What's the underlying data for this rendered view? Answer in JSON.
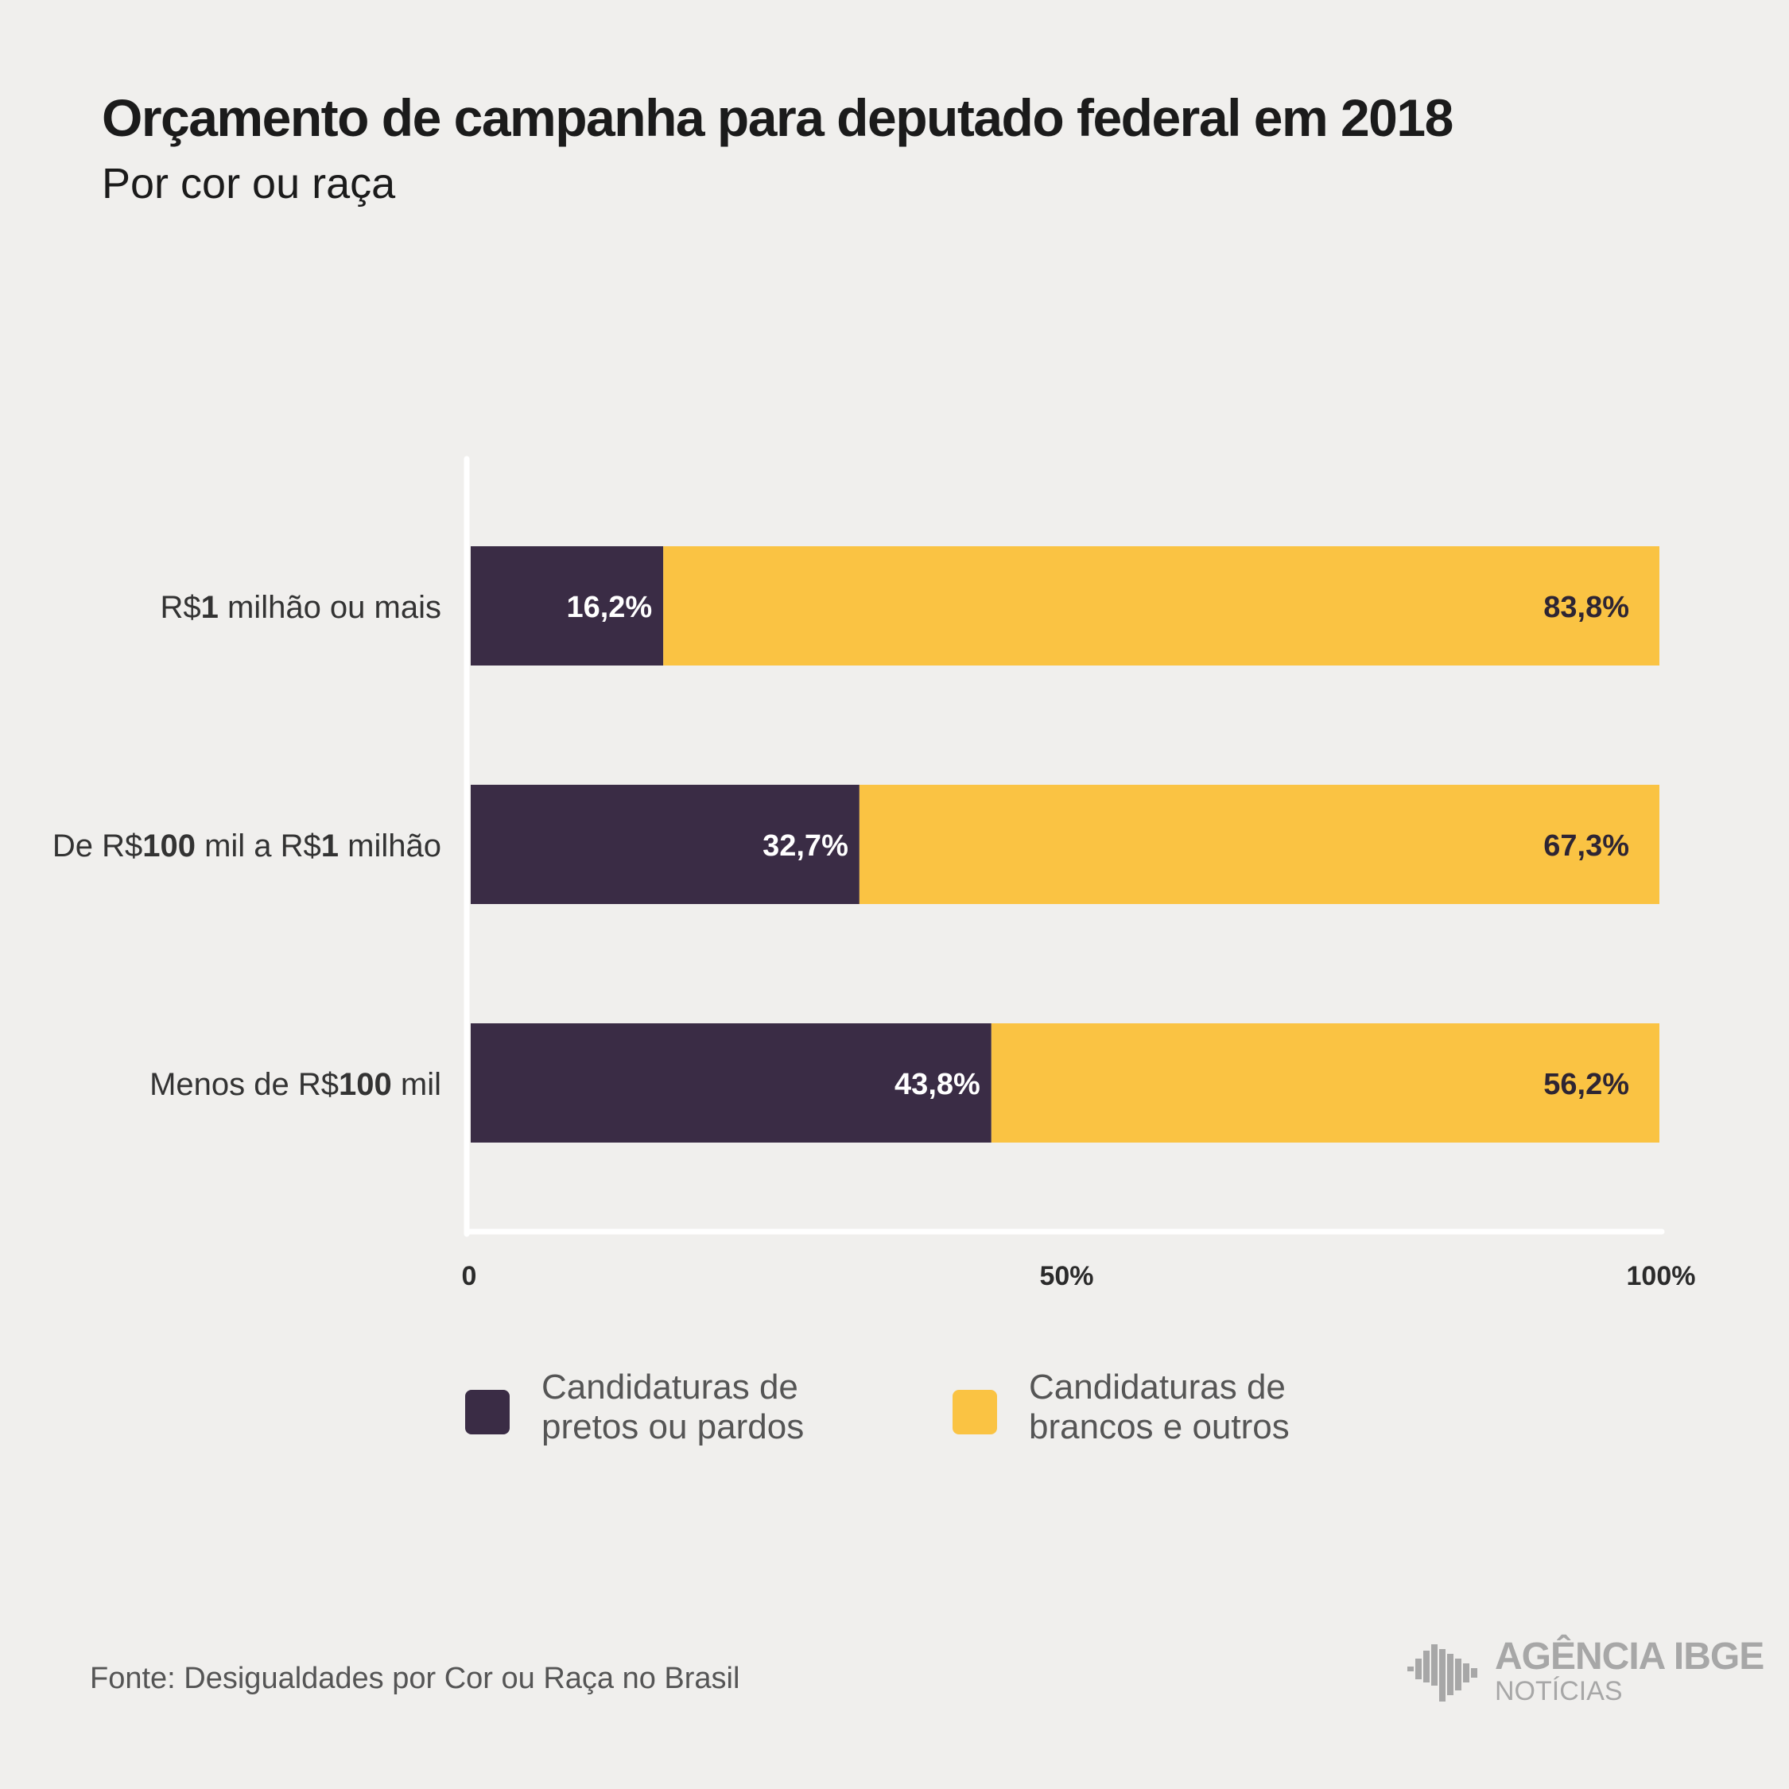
{
  "title": "Orçamento de campanha para deputado federal em 2018",
  "subtitle": "Por cor ou raça",
  "colors": {
    "background": "#f0efed",
    "dark": "#3a2c45",
    "yellow": "#fac343",
    "axis": "#ffffff"
  },
  "chart_data": {
    "type": "bar",
    "orientation": "horizontal",
    "stacked": true,
    "categories": [
      [
        {
          "t": "R$"
        },
        {
          "t": "1",
          "b": true
        },
        {
          "t": " milhão ou mais"
        }
      ],
      [
        {
          "t": "De R$"
        },
        {
          "t": "100",
          "b": true
        },
        {
          "t": " mil a R$"
        },
        {
          "t": "1",
          "b": true
        },
        {
          "t": " milhão"
        }
      ],
      [
        {
          "t": "Menos de R$"
        },
        {
          "t": "100",
          "b": true
        },
        {
          "t": " mil"
        }
      ]
    ],
    "series": [
      {
        "name": "Candidaturas de pretos ou pardos",
        "values": [
          16.2,
          32.7,
          43.8
        ],
        "labels": [
          "16,2%",
          "32,7%",
          "43,8%"
        ],
        "color": "#3a2c45"
      },
      {
        "name": "Candidaturas de brancos e outros",
        "values": [
          83.8,
          67.3,
          56.2
        ],
        "labels": [
          "83,8%",
          "67,3%",
          "56,2%"
        ],
        "color": "#fac343"
      }
    ],
    "xlim": [
      0,
      100
    ],
    "xticks": [
      0,
      50,
      100
    ],
    "xtick_labels": [
      "0",
      "50%",
      "100%"
    ],
    "grid": false,
    "legend_position": "bottom"
  },
  "legend": {
    "items": [
      {
        "line1": "Candidaturas de",
        "line2": "pretos ou pardos"
      },
      {
        "line1": "Candidaturas de",
        "line2": "brancos e outros"
      }
    ]
  },
  "source": "Fonte: Desigualdades por Cor ou Raça no Brasil",
  "logo": {
    "line1": "AGÊNCIA IBGE",
    "line2": "NOTÍCIAS"
  }
}
